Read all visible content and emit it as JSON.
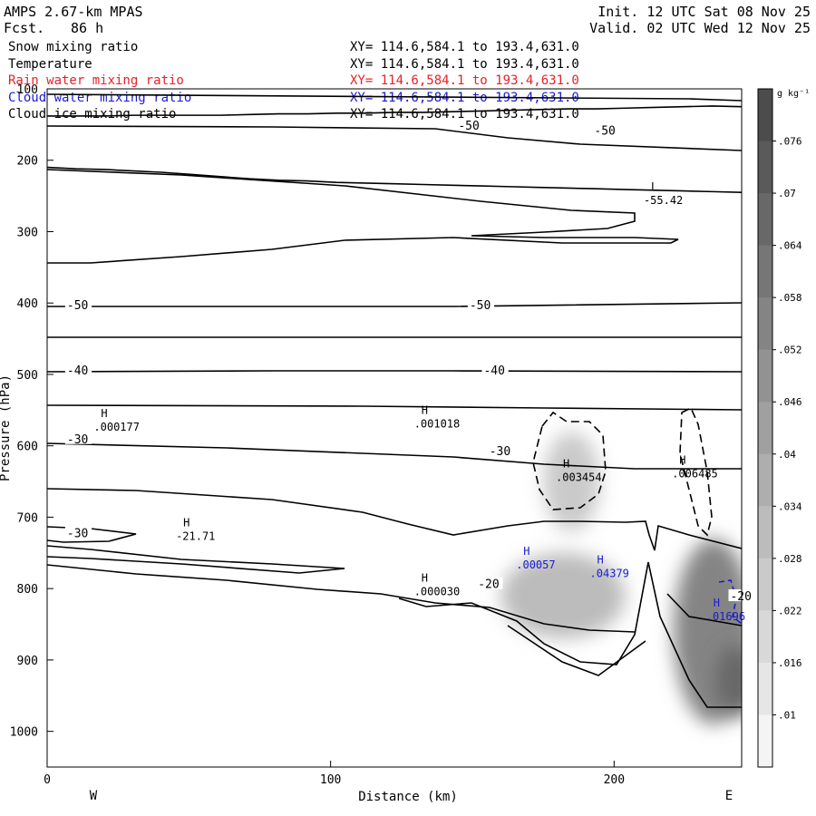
{
  "header": {
    "model": "AMPS 2.67-km MPAS",
    "forecast_label": "Fcst.",
    "forecast_hours": "86 h",
    "init": "Init. 12 UTC Sat 08 Nov 25",
    "valid": "Valid. 02 UTC Wed 12 Nov 25"
  },
  "fields": [
    {
      "name": "Snow mixing ratio",
      "xy": "XY= 114.6,584.1 to 193.4,631.0",
      "color": "#000000"
    },
    {
      "name": "Temperature",
      "xy": "XY= 114.6,584.1 to 193.4,631.0",
      "color": "#000000"
    },
    {
      "name": "Rain water mixing ratio",
      "xy": "XY= 114.6,584.1 to 193.4,631.0",
      "color": "#e8202a"
    },
    {
      "name": "Cloud water mixing ratio",
      "xy": "XY= 114.6,584.1 to 193.4,631.0",
      "color": "#1a1ad0"
    },
    {
      "name": "Cloud ice mixing ratio",
      "xy": "XY= 114.6,584.1 to 193.4,631.0",
      "color": "#000000"
    }
  ],
  "chart_data": {
    "type": "heatmap",
    "xlabel": "Distance (km)",
    "ylabel": "Pressure (hPa)",
    "xlim": [
      0,
      245
    ],
    "ylim": [
      100,
      1050
    ],
    "xticks": [
      0,
      100,
      200
    ],
    "yticks": [
      100,
      200,
      300,
      400,
      500,
      600,
      700,
      800,
      900,
      1000
    ],
    "left_label": "W",
    "right_label": "E",
    "colorbar": {
      "unit": "g kg⁻¹",
      "ticks": [
        ".01",
        ".016",
        ".022",
        ".028",
        ".034",
        ".04",
        ".046",
        ".052",
        ".058",
        ".064",
        ".07",
        ".076"
      ],
      "shades": [
        "#f4f4f4",
        "#e6e6e6",
        "#d8d8d8",
        "#cacaca",
        "#bcbcbc",
        "#aeaeae",
        "#a0a0a0",
        "#929292",
        "#848484",
        "#767676",
        "#686868",
        "#5a5a5a",
        "#4c4c4c"
      ]
    },
    "snow_blobs": [
      {
        "x": 182,
        "p": 810,
        "rx": 22,
        "rp": 60,
        "level": 4
      },
      {
        "x": 185,
        "p": 650,
        "rx": 10,
        "rp": 70,
        "level": 3
      },
      {
        "x": 235,
        "p": 860,
        "rx": 14,
        "rp": 130,
        "level": 8
      },
      {
        "x": 243,
        "p": 930,
        "rx": 7,
        "rp": 50,
        "level": 10
      }
    ],
    "temperature_contours": [
      {
        "p": [
          138,
          138,
          138,
          137,
          137,
          137,
          137,
          136,
          135,
          135,
          134,
          134,
          133,
          133,
          132,
          131,
          130,
          129,
          128,
          128,
          127,
          126,
          125,
          124,
          125
        ]
      },
      {
        "p": [
          210,
          212,
          213,
          215,
          217,
          220,
          223,
          226,
          228,
          229,
          231,
          232,
          233,
          234,
          235,
          236,
          237,
          238,
          239,
          240,
          241,
          242,
          243,
          244,
          245
        ]
      }
    ],
    "contour_labels": [
      {
        "x": 145,
        "p": 151,
        "text": "-50"
      },
      {
        "x": 193,
        "p": 158,
        "text": "-50"
      },
      {
        "x": 7,
        "p": 402,
        "text": "-50"
      },
      {
        "x": 149,
        "p": 402,
        "text": "-50"
      },
      {
        "x": 7,
        "p": 494,
        "text": "-40"
      },
      {
        "x": 154,
        "p": 494,
        "text": "-40"
      },
      {
        "x": 7,
        "p": 590,
        "text": "-30"
      },
      {
        "x": 156,
        "p": 607,
        "text": "-30"
      },
      {
        "x": 7,
        "p": 722,
        "text": "-30"
      },
      {
        "x": 152,
        "p": 793,
        "text": "-20"
      },
      {
        "x": 241,
        "p": 810,
        "text": "-20"
      }
    ],
    "extrema": [
      {
        "x": 213,
        "p": 242,
        "kind": "L",
        "value": "-55.42",
        "color": "#000000"
      },
      {
        "x": 19,
        "p": 560,
        "kind": "H",
        "value": ".000177",
        "color": "#000000"
      },
      {
        "x": 132,
        "p": 555,
        "kind": "H",
        "value": ".001018",
        "color": "#000000"
      },
      {
        "x": 182,
        "p": 630,
        "kind": "H",
        "value": ".003454",
        "color": "#000000"
      },
      {
        "x": 223,
        "p": 625,
        "kind": "H",
        "value": ".006485",
        "color": "#000000"
      },
      {
        "x": 48,
        "p": 713,
        "kind": "H",
        "value": "-21.71",
        "color": "#000000"
      },
      {
        "x": 132,
        "p": 790,
        "kind": "H",
        "value": ".000030",
        "color": "#000000"
      },
      {
        "x": 168,
        "p": 753,
        "kind": "H",
        "value": ".00057",
        "color": "#1a1ad0"
      },
      {
        "x": 194,
        "p": 765,
        "kind": "H",
        "value": ".04379",
        "color": "#1a1ad0"
      },
      {
        "x": 235,
        "p": 825,
        "kind": "H",
        "value": ".01696",
        "color": "#1a1ad0"
      }
    ]
  }
}
